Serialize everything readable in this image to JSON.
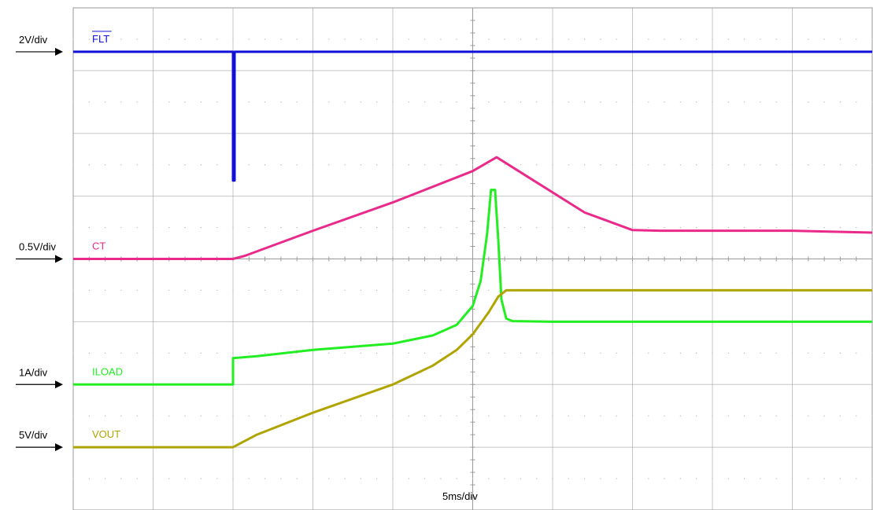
{
  "chart_data": {
    "type": "line",
    "time_scale_label": "5ms/div",
    "divisions": {
      "x": 10,
      "y": 8
    },
    "colors": {
      "grid": "#9a9a9a",
      "dots": "#bdbdbd",
      "arrow": "#000000"
    },
    "series": [
      {
        "name": "FLT",
        "overline": true,
        "color": "#1010d8",
        "scale_label": "2V/div",
        "ground_div": 7.3,
        "x": [
          0,
          2.0,
          2.0,
          2.02,
          2.02,
          10
        ],
        "y": [
          0,
          0,
          -2.05,
          -2.05,
          0,
          0
        ]
      },
      {
        "name": "CT",
        "color": "#ea2a8a",
        "scale_label": "0.5V/div",
        "ground_div": 4.0,
        "x": [
          0,
          2.0,
          2.15,
          3.0,
          4.0,
          5.0,
          5.3,
          5.6,
          6.4,
          7.0,
          7.35,
          8.0,
          9.0,
          10
        ],
        "y": [
          0,
          0,
          0.05,
          0.45,
          0.9,
          1.4,
          1.62,
          1.38,
          0.74,
          0.46,
          0.45,
          0.45,
          0.45,
          0.42
        ]
      },
      {
        "name": "ILOAD",
        "color": "#22ee22",
        "scale_label": "1A/div",
        "ground_div": 2.0,
        "x": [
          0,
          2.0,
          2.0,
          2.3,
          3.0,
          4.0,
          4.5,
          4.8,
          5.0,
          5.1,
          5.18,
          5.23,
          5.28,
          5.32,
          5.36,
          5.42,
          5.5,
          6.0,
          7.0,
          8.0,
          10
        ],
        "y": [
          0,
          0,
          0.42,
          0.45,
          0.55,
          0.65,
          0.78,
          0.95,
          1.25,
          1.65,
          2.4,
          3.1,
          3.1,
          2.3,
          1.35,
          1.05,
          1.01,
          1.0,
          1.0,
          1.0,
          1.0
        ]
      },
      {
        "name": "VOUT",
        "color": "#b0a400",
        "scale_label": "5V/div",
        "ground_div": 1.0,
        "x": [
          0,
          2.0,
          2.3,
          3.0,
          4.0,
          4.5,
          4.8,
          5.0,
          5.2,
          5.32,
          5.42,
          5.5,
          6.0,
          8.0,
          10
        ],
        "y": [
          0,
          0,
          0.2,
          0.55,
          1.0,
          1.3,
          1.55,
          1.8,
          2.15,
          2.4,
          2.5,
          2.5,
          2.5,
          2.5,
          2.5
        ]
      }
    ]
  }
}
